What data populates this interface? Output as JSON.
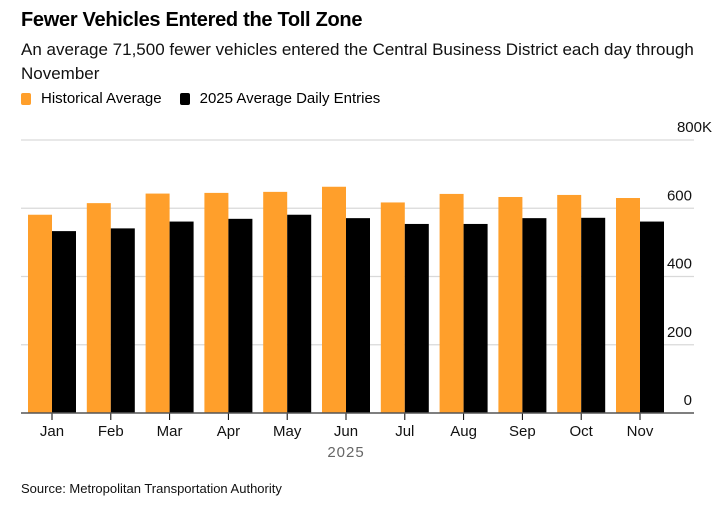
{
  "header": {
    "title": "Fewer Vehicles Entered the Toll Zone",
    "subtitle": "An average 71,500 fewer vehicles entered the Central Business District each day through November"
  },
  "footer": {
    "source": "Source: Metropolitan Transportation Authority"
  },
  "colors": {
    "historical": "#FF9F2B",
    "current": "#000000",
    "grid": "#D9D9D9",
    "axis": "#555555"
  },
  "chart_data": {
    "type": "bar",
    "title": "Fewer Vehicles Entered the Toll Zone",
    "subtitle": "An average 71,500 fewer vehicles entered the Central Business District each day through November",
    "xlabel": "2025",
    "ylabel": "",
    "ylim": [
      0,
      800000
    ],
    "yticks": [
      0,
      200000,
      400000,
      600000,
      800000
    ],
    "ytick_labels": [
      "0",
      "200",
      "400",
      "600",
      "800K"
    ],
    "y_axis_side": "right",
    "grid": true,
    "legend_position": "top-left",
    "categories": [
      "Jan",
      "Feb",
      "Mar",
      "Apr",
      "May",
      "Jun",
      "Jul",
      "Aug",
      "Sep",
      "Oct",
      "Nov"
    ],
    "series": [
      {
        "name": "Historical Average",
        "color": "#FF9F2B",
        "values": [
          581000,
          615000,
          643000,
          645000,
          648000,
          663000,
          617000,
          642000,
          633000,
          639000,
          630000
        ]
      },
      {
        "name": "2025 Average Daily Entries",
        "color": "#000000",
        "values": [
          533000,
          541000,
          561000,
          569000,
          581000,
          571000,
          554000,
          554000,
          571000,
          572000,
          561000
        ]
      }
    ]
  }
}
